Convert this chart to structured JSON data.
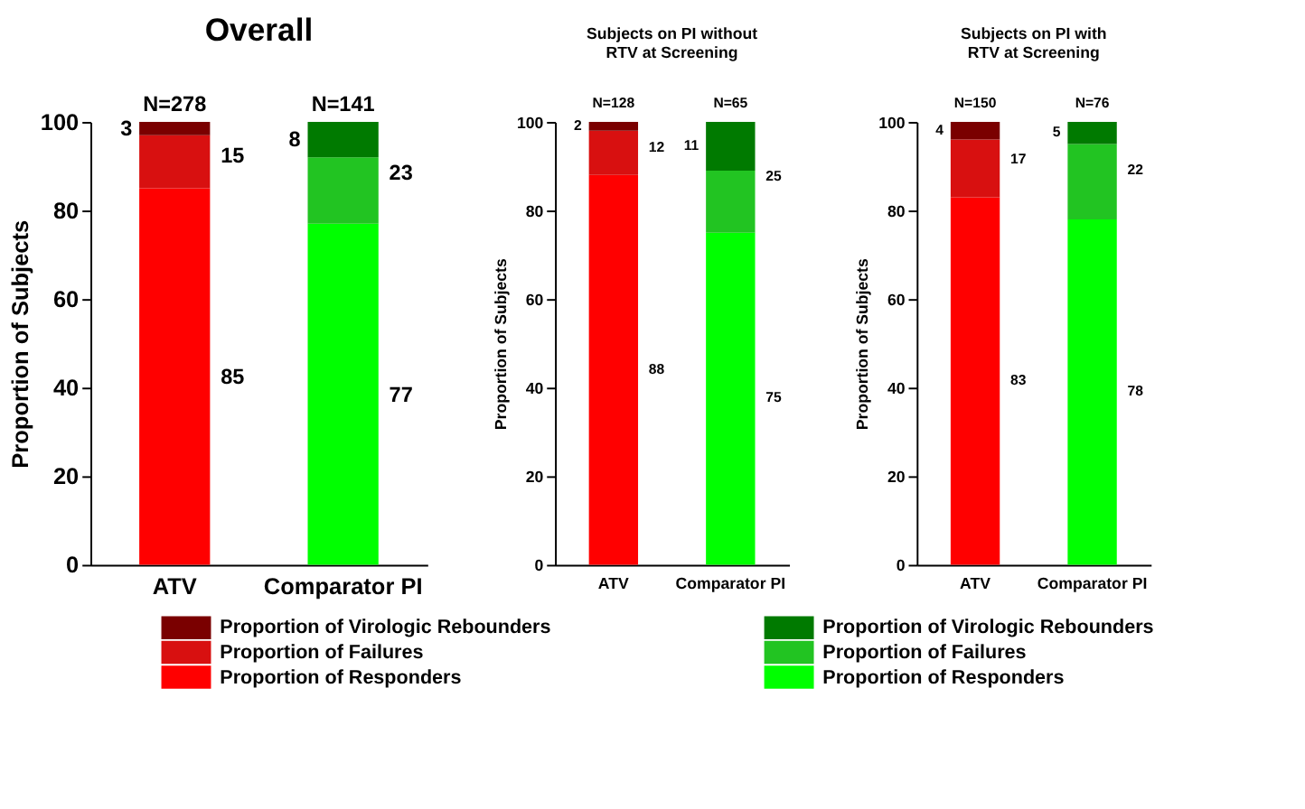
{
  "chart_data": [
    {
      "type": "bar",
      "title": "Overall",
      "stacked": true,
      "legend": "bottom",
      "ylabel": "Proportion of Subjects",
      "categories": [
        "ATV",
        "Comparator PI"
      ],
      "ylim": [
        0,
        100
      ],
      "yticks": [
        0,
        20,
        40,
        60,
        80,
        100
      ],
      "series": [
        {
          "name": "Proportion of Responders",
          "colors": [
            "#ff0000",
            "#00ff00"
          ],
          "values": [
            85,
            77
          ]
        },
        {
          "name": "Proportion of Failures",
          "colors": [
            "#d81010",
            "#22c422"
          ],
          "values": [
            12,
            15
          ]
        },
        {
          "name": "Proportion of Virologic Rebounders",
          "colors": [
            "#7a0000",
            "#007a00"
          ],
          "values": [
            3,
            8
          ]
        }
      ],
      "annotations": [
        "N=278",
        "N=141",
        "3",
        "8",
        "15",
        "23",
        "85",
        "77"
      ]
    },
    {
      "type": "bar",
      "title": "Subjects on PI without\nRTV at Screening",
      "stacked": true,
      "legend": "bottom",
      "ylabel": "Proportion of Subjects",
      "categories": [
        "ATV",
        "Comparator PI"
      ],
      "ylim": [
        0,
        100
      ],
      "yticks": [
        0,
        20,
        40,
        60,
        80,
        100
      ],
      "series": [
        {
          "name": "Proportion of Responders",
          "colors": [
            "#ff0000",
            "#00ff00"
          ],
          "values": [
            88,
            75
          ]
        },
        {
          "name": "Proportion of Failures",
          "colors": [
            "#d81010",
            "#22c422"
          ],
          "values": [
            10,
            14
          ]
        },
        {
          "name": "Proportion of Virologic Rebounders",
          "colors": [
            "#7a0000",
            "#007a00"
          ],
          "values": [
            2,
            11
          ]
        }
      ],
      "annotations": [
        "N=128",
        "N=65",
        "2",
        "11",
        "12",
        "25",
        "88",
        "75"
      ]
    },
    {
      "type": "bar",
      "title": "Subjects on PI with\nRTV at Screening",
      "stacked": true,
      "ylabel": "Proportion of Subjects",
      "categories": [
        "ATV",
        "Comparator PI"
      ],
      "ylim": [
        0,
        100
      ],
      "yticks": [
        0,
        20,
        40,
        60,
        80,
        100
      ],
      "series": [
        {
          "colors": [
            "#ff0000",
            "#00ff00"
          ],
          "values": [
            83,
            78
          ]
        },
        {
          "colors": [
            "#d81010",
            "#22c422"
          ],
          "values": [
            13,
            17
          ]
        },
        {
          "colors": [
            "#7a0000",
            "#007a00"
          ],
          "values": [
            4,
            5
          ]
        }
      ],
      "annotations": [
        "N=150",
        "N=76",
        "4",
        "5",
        "17",
        "22",
        "83",
        "78"
      ]
    }
  ]
}
